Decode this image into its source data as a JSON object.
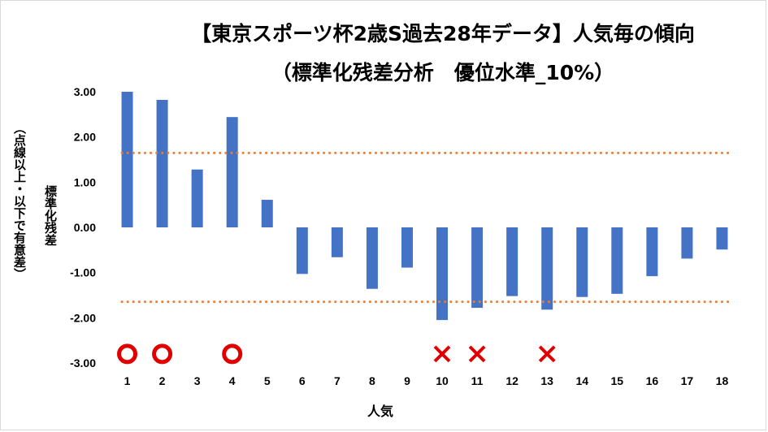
{
  "chart_data": {
    "type": "bar",
    "title": "【東京スポーツ杯2歳S過去28年データ】人気毎の傾向",
    "subtitle": "（標準化残差分析　優位水準_10%）",
    "xlabel": "人気",
    "ylabel": "標準化残差",
    "ylabel_note": "（点線以上・以下で有意差）",
    "categories": [
      "1",
      "2",
      "3",
      "4",
      "5",
      "6",
      "7",
      "8",
      "9",
      "10",
      "11",
      "12",
      "13",
      "14",
      "15",
      "16",
      "17",
      "18"
    ],
    "values": [
      3.0,
      2.82,
      1.28,
      2.44,
      0.61,
      -1.03,
      -0.66,
      -1.36,
      -0.89,
      -2.05,
      -1.78,
      -1.52,
      -1.82,
      -1.54,
      -1.47,
      -1.08,
      -0.69,
      -0.49
    ],
    "ylim": [
      -3,
      3
    ],
    "yticks": [
      "3.00",
      "2.00",
      "1.00",
      "0.00",
      "-1.00",
      "-2.00",
      "-3.00"
    ],
    "thresholds": [
      1.645,
      -1.645
    ],
    "markers": [
      {
        "category": "1",
        "symbol": "circle"
      },
      {
        "category": "2",
        "symbol": "circle"
      },
      {
        "category": "4",
        "symbol": "circle"
      },
      {
        "category": "10",
        "symbol": "cross"
      },
      {
        "category": "11",
        "symbol": "cross"
      },
      {
        "category": "13",
        "symbol": "cross"
      }
    ],
    "marker_level": -2.8,
    "colors": {
      "bar": "#4472c4",
      "threshold": "#ed7d31",
      "marker": "#e00000"
    },
    "grid": false,
    "legend": "none"
  }
}
